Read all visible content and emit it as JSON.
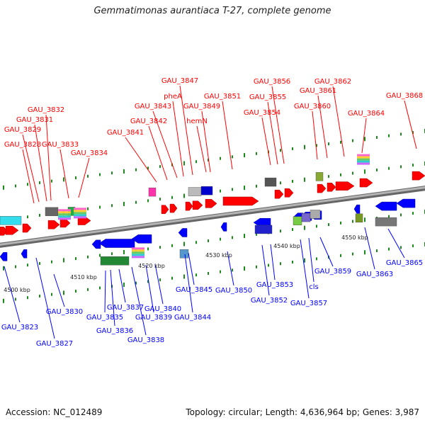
{
  "title": "Gemmatimonas aurantiaca T-27, complete genome",
  "footer": {
    "accession": "Accession: NC_012489",
    "summary": "Topology: circular; Length: 4,636,964 bp; Genes: 3,987"
  },
  "colors": {
    "plus_strand": "#ff0000",
    "minus_strand": "#0000ff",
    "backbone": "#8c8c8c",
    "tick": "#1a8a1a"
  },
  "scale": {
    "unit": "kbp",
    "ticks": [
      {
        "label": "4500 kbp"
      },
      {
        "label": "4510 kbp"
      },
      {
        "label": "4520 kbp"
      },
      {
        "label": "4530 kbp"
      },
      {
        "label": "4540 kbp"
      },
      {
        "label": "4550 kbp"
      }
    ]
  },
  "genes_plus": [
    {
      "label": "GAU_3828"
    },
    {
      "label": "GAU_3829"
    },
    {
      "label": "GAU_3831"
    },
    {
      "label": "GAU_3832"
    },
    {
      "label": "GAU_3833"
    },
    {
      "label": "GAU_3834"
    },
    {
      "label": "GAU_3841"
    },
    {
      "label": "GAU_3842"
    },
    {
      "label": "GAU_3843"
    },
    {
      "label": "pheA"
    },
    {
      "label": "GAU_3847"
    },
    {
      "label": "GAU_3849"
    },
    {
      "label": "hemN"
    },
    {
      "label": "GAU_3851"
    },
    {
      "label": "GAU_3854"
    },
    {
      "label": "GAU_3855"
    },
    {
      "label": "GAU_3856"
    },
    {
      "label": "GAU_3860"
    },
    {
      "label": "GAU_3861"
    },
    {
      "label": "GAU_3862"
    },
    {
      "label": "GAU_3864"
    },
    {
      "label": "GAU_3868"
    }
  ],
  "genes_minus": [
    {
      "label": "GAU_3823"
    },
    {
      "label": "GAU_3827"
    },
    {
      "label": "GAU_3830"
    },
    {
      "label": "GAU_3835"
    },
    {
      "label": "GAU_3836"
    },
    {
      "label": "GAU_3837"
    },
    {
      "label": "GAU_3838"
    },
    {
      "label": "GAU_3839"
    },
    {
      "label": "GAU_3840"
    },
    {
      "label": "GAU_3844"
    },
    {
      "label": "GAU_3845"
    },
    {
      "label": "GAU_3850"
    },
    {
      "label": "GAU_3852"
    },
    {
      "label": "GAU_3853"
    },
    {
      "label": "GAU_3857"
    },
    {
      "label": "cls"
    },
    {
      "label": "GAU_3859"
    },
    {
      "label": "GAU_3863"
    },
    {
      "label": "GAU_3865"
    }
  ]
}
